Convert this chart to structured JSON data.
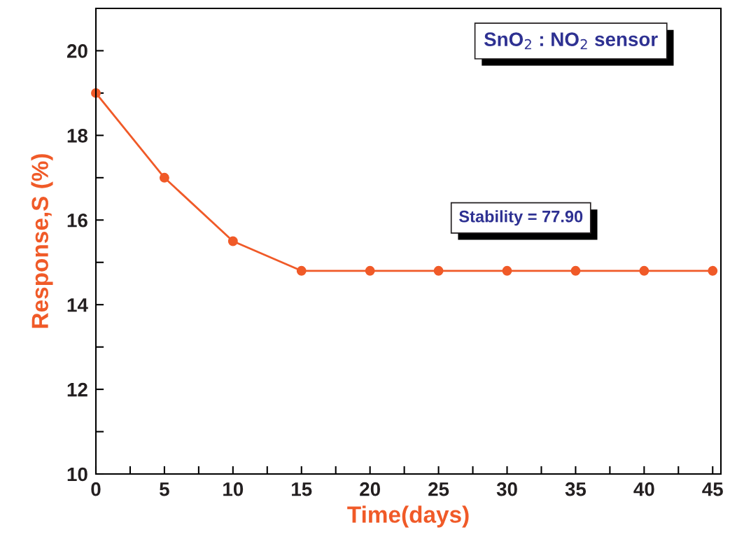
{
  "chart_data": {
    "type": "line",
    "xlabel": "Time(days)",
    "ylabel": "Response,S (%)",
    "x": [
      0,
      5,
      10,
      15,
      20,
      25,
      30,
      35,
      40,
      45
    ],
    "series": [
      {
        "color": "#f05a28",
        "values": [
          19,
          17,
          15.5,
          14.8,
          14.8,
          14.8,
          14.8,
          14.8,
          14.8,
          14.8
        ]
      }
    ],
    "xlim": [
      0,
      45.6
    ],
    "ylim": [
      10,
      21
    ],
    "xticks": [
      0,
      {
        "value": 2.5,
        "label": null
      },
      5,
      {
        "value": 7.5,
        "label": null
      },
      10,
      {
        "value": 12.5,
        "label": null
      },
      15,
      {
        "value": 17.5,
        "label": null
      },
      20,
      {
        "value": 22.5,
        "label": null
      },
      25,
      {
        "value": 27.5,
        "label": null
      },
      30,
      {
        "value": 32.5,
        "label": null
      },
      35,
      {
        "value": 37.5,
        "label": null
      },
      40,
      {
        "value": 42.5,
        "label": null
      },
      45
    ],
    "yticks": [
      10,
      {
        "value": 11,
        "label": null
      },
      12,
      {
        "value": 13,
        "label": null
      },
      14,
      {
        "value": 15,
        "label": null
      },
      16,
      {
        "value": 17,
        "label": null
      },
      18,
      {
        "value": 19,
        "label": null
      },
      20
    ],
    "annotations": [
      "SnO$_{2}$ : NO$_{2}$ sensor",
      "Stability = 77.90"
    ],
    "marker": "circle",
    "line_style": "solid",
    "grid": false,
    "legend": false
  }
}
